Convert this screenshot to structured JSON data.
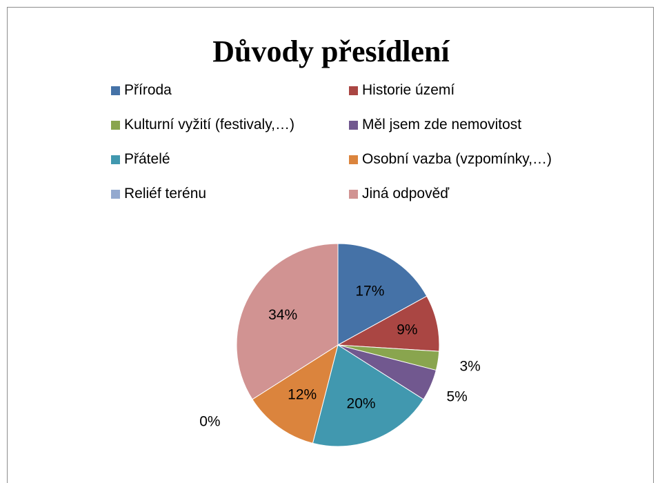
{
  "chart_data": {
    "type": "pie",
    "title": "Důvody přesídlení",
    "legend_position": "top",
    "categories": [
      "Příroda",
      "Historie území",
      "Kulturní vyžití (festivaly,…)",
      "Měl jsem zde nemovitost",
      "Přátelé",
      "Osobní vazba (vzpomínky,…)",
      "Reliéf terénu",
      "Jiná odpověď"
    ],
    "values": [
      17,
      9,
      3,
      5,
      20,
      12,
      0,
      34
    ],
    "labels": [
      "17%",
      "9%",
      "3%",
      "5%",
      "20%",
      "12%",
      "0%",
      "34%"
    ],
    "colors": [
      "#4572A7",
      "#AA4643",
      "#89A54E",
      "#71588F",
      "#4198AF",
      "#DB843D",
      "#93A9CF",
      "#D19392"
    ]
  }
}
